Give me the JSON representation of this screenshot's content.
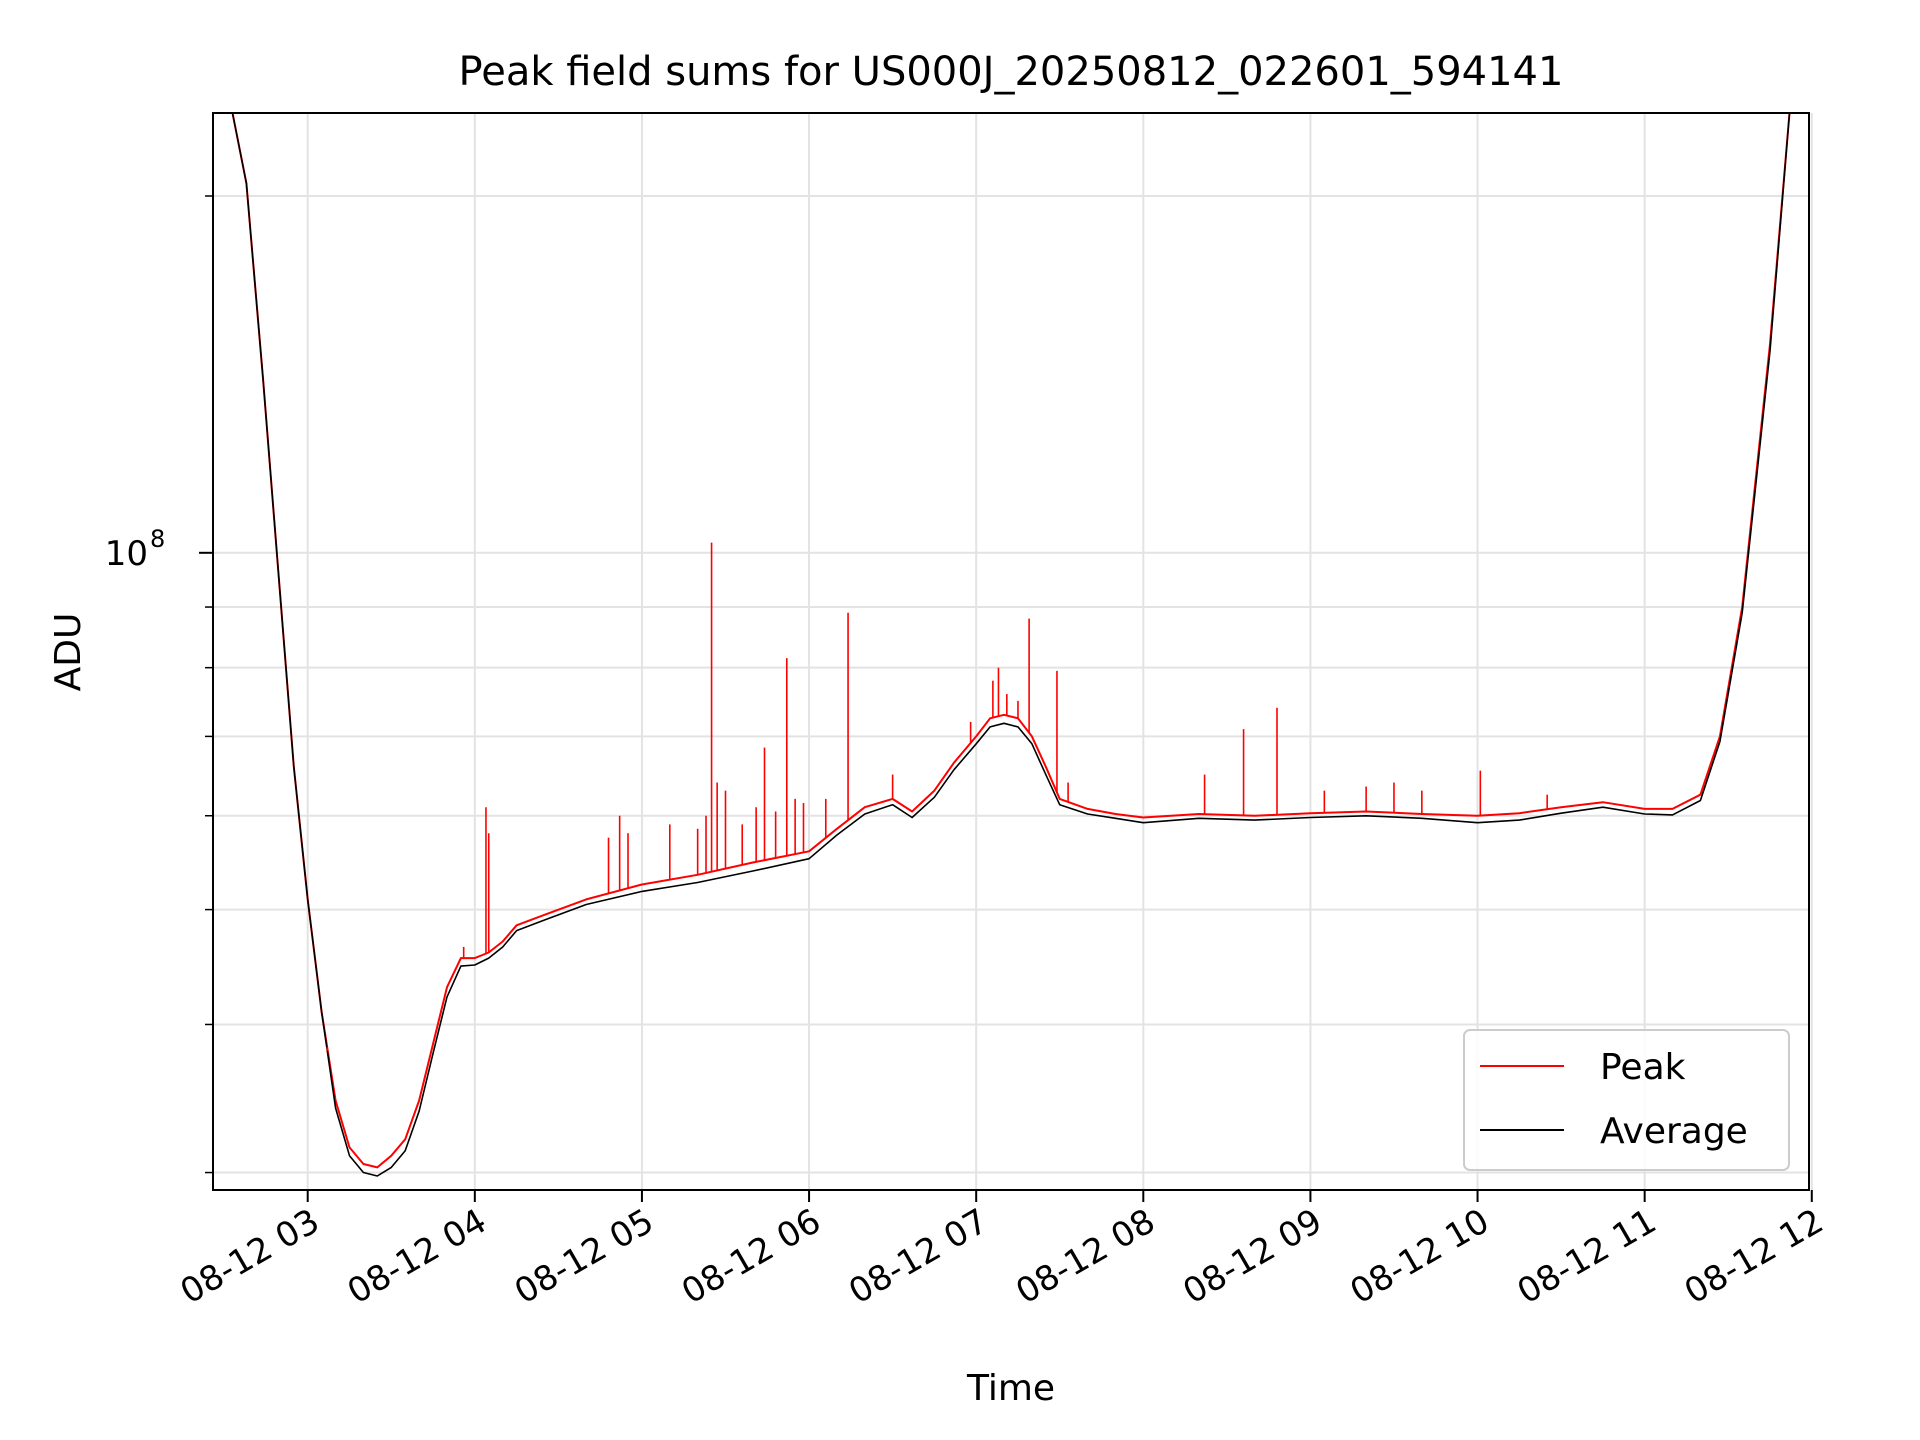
{
  "chart_data": {
    "type": "line",
    "title": "Peak field sums for US000J_20250812_022601_594141",
    "xlabel": "Time",
    "ylabel": "ADU",
    "y_scale": "log",
    "grid": true,
    "legend_position": "lower-right",
    "xlim": [
      "2025-08-12 02:26",
      "2025-08-12 11:59"
    ],
    "ylim": [
      29000000,
      235000000
    ],
    "x_ticks": [
      {
        "label": "08-12 03",
        "time": "2025-08-12 03:00"
      },
      {
        "label": "08-12 04",
        "time": "2025-08-12 04:00"
      },
      {
        "label": "08-12 05",
        "time": "2025-08-12 05:00"
      },
      {
        "label": "08-12 06",
        "time": "2025-08-12 06:00"
      },
      {
        "label": "08-12 07",
        "time": "2025-08-12 07:00"
      },
      {
        "label": "08-12 08",
        "time": "2025-08-12 08:00"
      },
      {
        "label": "08-12 09",
        "time": "2025-08-12 09:00"
      },
      {
        "label": "08-12 10",
        "time": "2025-08-12 10:00"
      },
      {
        "label": "08-12 11",
        "time": "2025-08-12 11:00"
      },
      {
        "label": "08-12 12",
        "time": "2025-08-12 12:00"
      }
    ],
    "y_major_tick": {
      "value": 100000000,
      "label_base": "10",
      "label_exp": "8"
    },
    "y_minor_ticks": [
      30000000,
      40000000,
      50000000,
      60000000,
      70000000,
      80000000,
      90000000,
      200000000
    ],
    "series": [
      {
        "name": "Peak",
        "color": "#ff0000",
        "points": [
          [
            "2025-08-12 02:26",
            235000000
          ],
          [
            "2025-08-12 02:33",
            235000000
          ],
          [
            "2025-08-12 02:38",
            205000000
          ],
          [
            "2025-08-12 02:44",
            140000000
          ],
          [
            "2025-08-12 02:50",
            93000000
          ],
          [
            "2025-08-12 02:55",
            66000000
          ],
          [
            "2025-08-12 03:00",
            51000000
          ],
          [
            "2025-08-12 03:05",
            41000000
          ],
          [
            "2025-08-12 03:10",
            34500000
          ],
          [
            "2025-08-12 03:15",
            31500000
          ],
          [
            "2025-08-12 03:20",
            30500000
          ],
          [
            "2025-08-12 03:25",
            30300000
          ],
          [
            "2025-08-12 03:30",
            31000000
          ],
          [
            "2025-08-12 03:35",
            32000000
          ],
          [
            "2025-08-12 03:40",
            34500000
          ],
          [
            "2025-08-12 03:45",
            38500000
          ],
          [
            "2025-08-12 03:50",
            43000000
          ],
          [
            "2025-08-12 03:55",
            45500000
          ],
          [
            "2025-08-12 04:00",
            45500000
          ],
          [
            "2025-08-12 04:05",
            46000000
          ],
          [
            "2025-08-12 04:10",
            47000000
          ],
          [
            "2025-08-12 04:15",
            48500000
          ],
          [
            "2025-08-12 04:25",
            49500000
          ],
          [
            "2025-08-12 04:40",
            51000000
          ],
          [
            "2025-08-12 05:00",
            52500000
          ],
          [
            "2025-08-12 05:20",
            53500000
          ],
          [
            "2025-08-12 05:40",
            54800000
          ],
          [
            "2025-08-12 06:00",
            56000000
          ],
          [
            "2025-08-12 06:10",
            58500000
          ],
          [
            "2025-08-12 06:20",
            61000000
          ],
          [
            "2025-08-12 06:30",
            62000000
          ],
          [
            "2025-08-12 06:37",
            60500000
          ],
          [
            "2025-08-12 06:45",
            63000000
          ],
          [
            "2025-08-12 06:52",
            66500000
          ],
          [
            "2025-08-12 07:00",
            70000000
          ],
          [
            "2025-08-12 07:05",
            72500000
          ],
          [
            "2025-08-12 07:10",
            73000000
          ],
          [
            "2025-08-12 07:15",
            72500000
          ],
          [
            "2025-08-12 07:20",
            70000000
          ],
          [
            "2025-08-12 07:25",
            66000000
          ],
          [
            "2025-08-12 07:30",
            62000000
          ],
          [
            "2025-08-12 07:40",
            60800000
          ],
          [
            "2025-08-12 07:50",
            60200000
          ],
          [
            "2025-08-12 08:00",
            59800000
          ],
          [
            "2025-08-12 08:20",
            60200000
          ],
          [
            "2025-08-12 08:40",
            60000000
          ],
          [
            "2025-08-12 09:00",
            60300000
          ],
          [
            "2025-08-12 09:20",
            60500000
          ],
          [
            "2025-08-12 09:40",
            60200000
          ],
          [
            "2025-08-12 10:00",
            60000000
          ],
          [
            "2025-08-12 10:15",
            60300000
          ],
          [
            "2025-08-12 10:30",
            61000000
          ],
          [
            "2025-08-12 10:45",
            61600000
          ],
          [
            "2025-08-12 11:00",
            60800000
          ],
          [
            "2025-08-12 11:10",
            60800000
          ],
          [
            "2025-08-12 11:20",
            62500000
          ],
          [
            "2025-08-12 11:27",
            70000000
          ],
          [
            "2025-08-12 11:35",
            90000000
          ],
          [
            "2025-08-12 11:45",
            150000000
          ],
          [
            "2025-08-12 11:52",
            235000000
          ],
          [
            "2025-08-12 11:59",
            235000000
          ]
        ]
      },
      {
        "name": "Average",
        "color": "#000000",
        "points": [
          [
            "2025-08-12 02:26",
            235000000
          ],
          [
            "2025-08-12 02:33",
            235000000
          ],
          [
            "2025-08-12 02:38",
            205000000
          ],
          [
            "2025-08-12 02:44",
            140000000
          ],
          [
            "2025-08-12 02:50",
            93000000
          ],
          [
            "2025-08-12 02:55",
            66000000
          ],
          [
            "2025-08-12 03:00",
            51000000
          ],
          [
            "2025-08-12 03:05",
            41000000
          ],
          [
            "2025-08-12 03:10",
            34000000
          ],
          [
            "2025-08-12 03:15",
            31000000
          ],
          [
            "2025-08-12 03:20",
            30000000
          ],
          [
            "2025-08-12 03:25",
            29800000
          ],
          [
            "2025-08-12 03:30",
            30300000
          ],
          [
            "2025-08-12 03:35",
            31300000
          ],
          [
            "2025-08-12 03:40",
            33800000
          ],
          [
            "2025-08-12 03:45",
            37800000
          ],
          [
            "2025-08-12 03:50",
            42200000
          ],
          [
            "2025-08-12 03:55",
            44800000
          ],
          [
            "2025-08-12 04:00",
            44900000
          ],
          [
            "2025-08-12 04:05",
            45500000
          ],
          [
            "2025-08-12 04:10",
            46500000
          ],
          [
            "2025-08-12 04:15",
            48000000
          ],
          [
            "2025-08-12 04:25",
            49000000
          ],
          [
            "2025-08-12 04:40",
            50500000
          ],
          [
            "2025-08-12 05:00",
            51800000
          ],
          [
            "2025-08-12 05:20",
            52700000
          ],
          [
            "2025-08-12 05:40",
            53900000
          ],
          [
            "2025-08-12 06:00",
            55200000
          ],
          [
            "2025-08-12 06:10",
            57800000
          ],
          [
            "2025-08-12 06:20",
            60200000
          ],
          [
            "2025-08-12 06:30",
            61300000
          ],
          [
            "2025-08-12 06:37",
            59800000
          ],
          [
            "2025-08-12 06:45",
            62200000
          ],
          [
            "2025-08-12 06:52",
            65600000
          ],
          [
            "2025-08-12 07:00",
            69000000
          ],
          [
            "2025-08-12 07:05",
            71300000
          ],
          [
            "2025-08-12 07:10",
            71800000
          ],
          [
            "2025-08-12 07:15",
            71300000
          ],
          [
            "2025-08-12 07:20",
            69000000
          ],
          [
            "2025-08-12 07:25",
            65000000
          ],
          [
            "2025-08-12 07:30",
            61300000
          ],
          [
            "2025-08-12 07:40",
            60200000
          ],
          [
            "2025-08-12 07:50",
            59700000
          ],
          [
            "2025-08-12 08:00",
            59200000
          ],
          [
            "2025-08-12 08:20",
            59700000
          ],
          [
            "2025-08-12 08:40",
            59500000
          ],
          [
            "2025-08-12 09:00",
            59800000
          ],
          [
            "2025-08-12 09:20",
            60000000
          ],
          [
            "2025-08-12 09:40",
            59700000
          ],
          [
            "2025-08-12 10:00",
            59200000
          ],
          [
            "2025-08-12 10:15",
            59500000
          ],
          [
            "2025-08-12 10:30",
            60300000
          ],
          [
            "2025-08-12 10:45",
            61000000
          ],
          [
            "2025-08-12 11:00",
            60200000
          ],
          [
            "2025-08-12 11:10",
            60100000
          ],
          [
            "2025-08-12 11:20",
            61800000
          ],
          [
            "2025-08-12 11:27",
            69300000
          ],
          [
            "2025-08-12 11:35",
            89000000
          ],
          [
            "2025-08-12 11:45",
            148000000
          ],
          [
            "2025-08-12 11:52",
            235000000
          ],
          [
            "2025-08-12 11:59",
            235000000
          ]
        ]
      }
    ],
    "peak_spikes": [
      [
        "2025-08-12 03:07",
        38000000
      ],
      [
        "2025-08-12 03:56",
        46500000
      ],
      [
        "2025-08-12 04:04",
        61000000
      ],
      [
        "2025-08-12 04:05",
        58000000
      ],
      [
        "2025-08-12 04:48",
        57500000
      ],
      [
        "2025-08-12 04:52",
        60000000
      ],
      [
        "2025-08-12 04:55",
        58000000
      ],
      [
        "2025-08-12 05:10",
        59000000
      ],
      [
        "2025-08-12 05:20",
        58500000
      ],
      [
        "2025-08-12 05:23",
        60000000
      ],
      [
        "2025-08-12 05:25",
        102000000
      ],
      [
        "2025-08-12 05:27",
        64000000
      ],
      [
        "2025-08-12 05:30",
        63000000
      ],
      [
        "2025-08-12 05:36",
        59000000
      ],
      [
        "2025-08-12 05:41",
        61000000
      ],
      [
        "2025-08-12 05:44",
        68500000
      ],
      [
        "2025-08-12 05:48",
        60500000
      ],
      [
        "2025-08-12 05:52",
        81500000
      ],
      [
        "2025-08-12 05:55",
        62000000
      ],
      [
        "2025-08-12 05:58",
        61500000
      ],
      [
        "2025-08-12 06:06",
        62000000
      ],
      [
        "2025-08-12 06:14",
        89000000
      ],
      [
        "2025-08-12 06:30",
        65000000
      ],
      [
        "2025-08-12 06:58",
        72000000
      ],
      [
        "2025-08-12 07:06",
        78000000
      ],
      [
        "2025-08-12 07:08",
        80000000
      ],
      [
        "2025-08-12 07:11",
        76000000
      ],
      [
        "2025-08-12 07:15",
        75000000
      ],
      [
        "2025-08-12 07:19",
        88000000
      ],
      [
        "2025-08-12 07:29",
        79500000
      ],
      [
        "2025-08-12 07:33",
        64000000
      ],
      [
        "2025-08-12 08:22",
        65000000
      ],
      [
        "2025-08-12 08:36",
        71000000
      ],
      [
        "2025-08-12 08:48",
        74000000
      ],
      [
        "2025-08-12 09:05",
        63000000
      ],
      [
        "2025-08-12 09:20",
        63500000
      ],
      [
        "2025-08-12 09:30",
        64000000
      ],
      [
        "2025-08-12 09:40",
        63000000
      ],
      [
        "2025-08-12 10:01",
        65500000
      ],
      [
        "2025-08-12 10:25",
        62500000
      ]
    ]
  }
}
